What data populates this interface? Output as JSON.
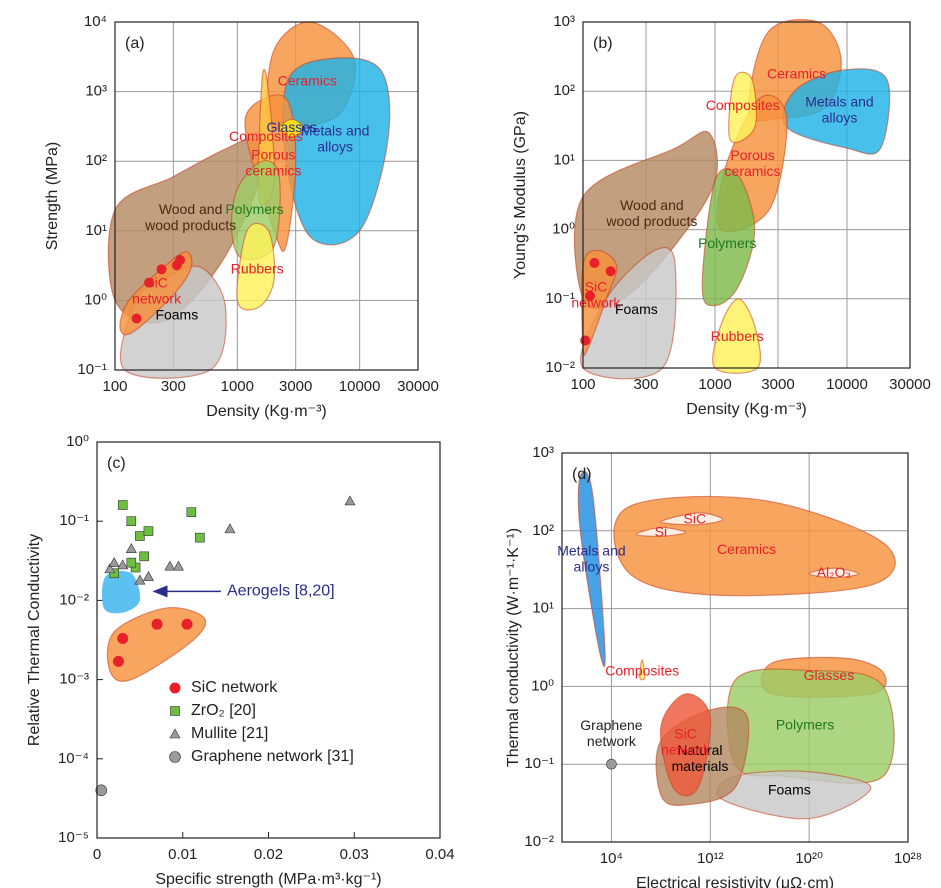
{
  "chart_data": [
    {
      "type": "region",
      "panel_label": "(a)",
      "xlabel": "Density (Kg·m⁻³)",
      "ylabel": "Strength (MPa)",
      "xlog": true,
      "ylog": true,
      "grid": true,
      "xlim": [
        100,
        30000
      ],
      "ylim": [
        0.1,
        10000
      ],
      "xticks": [
        100,
        300,
        1000,
        3000,
        10000,
        30000
      ],
      "yticks": [
        {
          "value": 0.1,
          "label": "10⁻¹"
        },
        {
          "value": 1,
          "label": "10⁰"
        },
        {
          "value": 10,
          "label": "10¹"
        },
        {
          "value": 100,
          "label": "10²"
        },
        {
          "value": 1000,
          "label": "10³"
        },
        {
          "value": 10000,
          "label": "10⁴"
        }
      ],
      "regions": [
        {
          "label": [
            "Wood and",
            "wood products"
          ],
          "color": "#b48a62",
          "text_color": "#4a2a10",
          "x": [
            100,
            100,
            300,
            800,
            1400,
            1500,
            700,
            250
          ],
          "y": [
            1,
            20,
            60,
            150,
            200,
            50,
            3,
            0.5
          ]
        },
        {
          "label": [
            "Foams"
          ],
          "color": "#c8c8c8",
          "text_color": "#000000",
          "x": [
            120,
            150,
            250,
            500,
            800,
            600
          ],
          "y": [
            0.1,
            1,
            2,
            3,
            0.8,
            0.1
          ]
        },
        {
          "label": [
            "Ceramics"
          ],
          "color": "#f7913d",
          "text_color": "#e8202a",
          "x": [
            1800,
            2000,
            4000,
            9000,
            7000,
            3000
          ],
          "y": [
            400,
            4000,
            10000,
            3000,
            500,
            300
          ]
        },
        {
          "label": [
            "Metals and",
            "alloys"
          ],
          "color": "#1fb2e8",
          "text_color": "#2b2d8e",
          "x": [
            2500,
            2600,
            6000,
            15000,
            17000,
            10000,
            4000
          ],
          "y": [
            100,
            1500,
            3000,
            2000,
            200,
            10,
            8
          ]
        },
        {
          "label": [
            "Porous",
            "ceramics"
          ],
          "color": "#f7913d",
          "text_color": "#e8202a",
          "x": [
            1200,
            1300,
            2500,
            3000,
            2500,
            2000
          ],
          "y": [
            200,
            600,
            800,
            100,
            6,
            10
          ]
        },
        {
          "label": [
            "Composites"
          ],
          "color": "#fbc640",
          "text_color": "#e8202a",
          "x": [
            1500,
            1600,
            1800,
            2000
          ],
          "y": [
            30,
            1600,
            1000,
            50
          ]
        },
        {
          "label": [
            "Polymers"
          ],
          "color": "#9ccc65",
          "text_color": "#1f7a1f",
          "x": [
            900,
            1000,
            1600,
            2200,
            2000,
            1100
          ],
          "y": [
            10,
            40,
            100,
            60,
            6,
            4
          ]
        },
        {
          "label": [
            "Rubbers"
          ],
          "color": "#fff159",
          "text_color": "#e8202a",
          "x": [
            1000,
            1200,
            1800,
            2000,
            1500
          ],
          "y": [
            1,
            10,
            10,
            2,
            0.8
          ]
        },
        {
          "label": [
            "Glasses"
          ],
          "color": "#fff200",
          "text_color": "#2b2d8e",
          "x": [
            2200,
            2800,
            3500,
            2800
          ],
          "y": [
            300,
            400,
            300,
            220
          ]
        },
        {
          "label": [
            "SiC",
            "network"
          ],
          "color": "#f7913d",
          "text_color": "#e8202a",
          "x": [
            110,
            130,
            250,
            380,
            420,
            300,
            140
          ],
          "y": [
            0.4,
            1,
            3,
            5,
            3,
            1.2,
            0.35
          ]
        }
      ],
      "points": {
        "color": "#e8202a",
        "x": [
          150,
          190,
          240,
          320,
          340
        ],
        "y": [
          0.55,
          1.8,
          2.8,
          3.2,
          3.8
        ]
      }
    },
    {
      "type": "region",
      "panel_label": "(b)",
      "xlabel": "Density (Kg·m⁻³)",
      "ylabel": "Young's Modulus (GPa)",
      "xlog": true,
      "ylog": true,
      "grid": true,
      "xlim": [
        100,
        30000
      ],
      "ylim": [
        0.01,
        1000
      ],
      "xticks": [
        100,
        300,
        1000,
        3000,
        10000,
        30000
      ],
      "yticks": [
        {
          "value": 0.01,
          "label": "10⁻²"
        },
        {
          "value": 0.1,
          "label": "10⁻¹"
        },
        {
          "value": 1,
          "label": "10⁰"
        },
        {
          "value": 10,
          "label": "10¹"
        },
        {
          "value": 100,
          "label": "10²"
        },
        {
          "value": 1000,
          "label": "10³"
        }
      ],
      "regions": [
        {
          "label": [
            "Wood and",
            "wood products"
          ],
          "color": "#b48a62",
          "text_color": "#4a2a10",
          "x": [
            100,
            100,
            500,
            900,
            1000,
            500,
            200
          ],
          "y": [
            0.1,
            3,
            15,
            25,
            5,
            0.6,
            0.1
          ]
        },
        {
          "label": [
            "Foams"
          ],
          "color": "#c8c8c8",
          "text_color": "#000000",
          "x": [
            100,
            150,
            350,
            500,
            400
          ],
          "y": [
            0.01,
            0.1,
            0.5,
            0.3,
            0.01
          ]
        },
        {
          "label": [
            "Ceramics"
          ],
          "color": "#f7913d",
          "text_color": "#e8202a",
          "x": [
            1800,
            2500,
            6000,
            9000,
            7000,
            3000
          ],
          "y": [
            50,
            700,
            1000,
            300,
            60,
            40
          ]
        },
        {
          "label": [
            "Metals and",
            "alloys"
          ],
          "color": "#1fb2e8",
          "text_color": "#2b2d8e",
          "x": [
            3500,
            4000,
            9000,
            20000,
            18000,
            10000
          ],
          "y": [
            30,
            100,
            200,
            150,
            15,
            15
          ]
        },
        {
          "label": [
            "Porous",
            "ceramics"
          ],
          "color": "#f7913d",
          "text_color": "#e8202a",
          "x": [
            1100,
            1200,
            2200,
            3500,
            2600
          ],
          "y": [
            1,
            8,
            80,
            40,
            2
          ]
        },
        {
          "label": [
            "Composites"
          ],
          "color": "#fff159",
          "text_color": "#e8202a",
          "x": [
            1300,
            1400,
            1900,
            2000
          ],
          "y": [
            20,
            150,
            150,
            30
          ]
        },
        {
          "label": [
            "Polymers"
          ],
          "color": "#7fba4c",
          "text_color": "#1f7a1f",
          "x": [
            800,
            1000,
            1500,
            2000,
            1500,
            1000
          ],
          "y": [
            0.15,
            5,
            6,
            1,
            0.15,
            0.08
          ]
        },
        {
          "label": [
            "Rubbers"
          ],
          "color": "#fff159",
          "text_color": "#e8202a",
          "x": [
            1000,
            1100,
            1500,
            2000,
            2100
          ],
          "y": [
            0.01,
            0.04,
            0.1,
            0.04,
            0.01
          ]
        },
        {
          "label": [
            "SiC",
            "network"
          ],
          "color": "#f7913d",
          "text_color": "#e8202a",
          "x": [
            100,
            100,
            130,
            180,
            150,
            110
          ],
          "y": [
            0.02,
            0.3,
            0.5,
            0.3,
            0.1,
            0.02
          ]
        }
      ],
      "points": {
        "color": "#e8202a",
        "x": [
          104,
          113,
          122,
          162
        ],
        "y": [
          0.025,
          0.11,
          0.33,
          0.25
        ]
      }
    },
    {
      "type": "scatter",
      "panel_label": "(c)",
      "xlabel": "Specific strength (MPa·m³·kg⁻¹)",
      "ylabel": "Relative Thermal Conductivity",
      "xlog": false,
      "ylog": true,
      "grid": false,
      "xlim": [
        0,
        0.04
      ],
      "ylim": [
        1e-05,
        1
      ],
      "xticks": [
        0,
        0.01,
        0.02,
        0.03,
        0.04
      ],
      "yticks": [
        {
          "value": 1e-05,
          "label": "10⁻⁵"
        },
        {
          "value": 0.0001,
          "label": "10⁻⁴"
        },
        {
          "value": 0.001,
          "label": "10⁻³"
        },
        {
          "value": 0.01,
          "label": "10⁻²"
        },
        {
          "value": 0.1,
          "label": "10⁻¹"
        },
        {
          "value": 1,
          "label": "10⁰"
        }
      ],
      "regions": [
        {
          "color": "#3fb6ee",
          "x": [
            0.0008,
            0.001,
            0.004,
            0.005,
            0.003
          ],
          "y": [
            0.008,
            0.02,
            0.022,
            0.01,
            0.007
          ]
        },
        {
          "color": "#f7913d",
          "x": [
            0.0015,
            0.002,
            0.008,
            0.0125,
            0.011,
            0.004
          ],
          "y": [
            0.0013,
            0.004,
            0.008,
            0.006,
            0.003,
            0.001
          ]
        }
      ],
      "annotation": {
        "text": "Aerogels [8,20]",
        "color": "#2b2d8e"
      },
      "legend": "lower center",
      "series": [
        {
          "name": "SiC network",
          "marker": "circle",
          "color": "#e8202a",
          "x": [
            0.0025,
            0.003,
            0.007,
            0.0105
          ],
          "values": [
            0.0017,
            0.0033,
            0.005,
            0.005
          ]
        },
        {
          "name": "ZrO₂ [20]",
          "marker": "square",
          "color": "#6cbf3f",
          "x": [
            0.002,
            0.003,
            0.004,
            0.005,
            0.006,
            0.0045,
            0.0055,
            0.011,
            0.012,
            0.004
          ],
          "values": [
            0.022,
            0.16,
            0.1,
            0.065,
            0.075,
            0.026,
            0.036,
            0.13,
            0.062,
            0.03
          ]
        },
        {
          "name": "Mullite [21]",
          "marker": "triangle",
          "color": "#9a9a9a",
          "x": [
            0.0015,
            0.002,
            0.003,
            0.004,
            0.005,
            0.006,
            0.0085,
            0.0095,
            0.0155,
            0.0295
          ],
          "values": [
            0.025,
            0.03,
            0.028,
            0.045,
            0.018,
            0.02,
            0.027,
            0.027,
            0.08,
            0.18
          ]
        },
        {
          "name": "Graphene network [31]",
          "marker": "circle",
          "color": "#9a9a9a",
          "x": [
            0.0005
          ],
          "values": [
            4e-05
          ]
        }
      ]
    },
    {
      "type": "region",
      "panel_label": "(d)",
      "xlabel": "Electrical resistivity (μΩ·cm)",
      "ylabel": "Thermal conductivity (W·m⁻¹·K⁻¹)",
      "xlog": true,
      "ylog": true,
      "grid": true,
      "xlim": [
        1,
        1e+28
      ],
      "ylim": [
        0.01,
        1000
      ],
      "xticks": [
        {
          "value": 10000,
          "label": "10⁴"
        },
        {
          "value": 1000000000000.0,
          "label": "10¹²"
        },
        {
          "value": 1e+20,
          "label": "10²⁰"
        },
        {
          "value": 1e+28,
          "label": "10²⁸"
        }
      ],
      "yticks": [
        {
          "value": 0.01,
          "label": "10⁻²"
        },
        {
          "value": 0.1,
          "label": "10⁻¹"
        },
        {
          "value": 1,
          "label": "10⁰"
        },
        {
          "value": 10,
          "label": "10¹"
        },
        {
          "value": 100,
          "label": "10²"
        },
        {
          "value": 1000,
          "label": "10³"
        }
      ],
      "regions": [
        {
          "label": [
            "Ceramics"
          ],
          "color": "#f7913d",
          "text_color": "#e8202a",
          "x": [
            200000,
            200000,
            1e+16,
            1e+26,
            1e+25,
            1000000000000.0
          ],
          "y": [
            30,
            200,
            250,
            70,
            20,
            15
          ]
        },
        {
          "label": [
            "Si"
          ],
          "color": "#ffffff",
          "text_color": "#e8202a",
          "x": [
            1000000,
            100000000.0,
            10000000000.0,
            100000000.0
          ],
          "y": [
            90,
            110,
            95,
            85
          ]
        },
        {
          "label": [
            "SiC"
          ],
          "color": "#ffffff",
          "text_color": "#e8202a",
          "x": [
            100000000.0,
            100000000000.0,
            10000000000000.0,
            100000000000.0
          ],
          "y": [
            130,
            170,
            140,
            120
          ]
        },
        {
          "label": [
            "Al₂O₃"
          ],
          "color": "#ffffff",
          "text_color": "#e8202a",
          "x": [
            1e+20,
            1e+22,
            1e+24,
            1e+22
          ],
          "y": [
            28,
            33,
            28,
            25
          ]
        },
        {
          "label": [
            "Metals and",
            "alloys"
          ],
          "color": "#1f8fe0",
          "text_color": "#2b2d8e",
          "x": [
            30,
            300,
            3000,
            1000,
            30
          ],
          "y": [
            500,
            300,
            3,
            3,
            100
          ]
        },
        {
          "label": [
            "Composites"
          ],
          "color": "#fff159",
          "text_color": "#e8202a",
          "x": [
            2000000,
            3000000,
            5000000
          ],
          "y": [
            1.3,
            2.2,
            1.3
          ]
        },
        {
          "label": [
            "Glasses"
          ],
          "color": "#f7913d",
          "text_color": "#e8202a",
          "x": [
            1e+17,
            1e+17,
            1e+23,
            1e+26,
            1e+25
          ],
          "y": [
            0.8,
            2,
            2.3,
            1.5,
            0.8
          ]
        },
        {
          "label": [
            "Polymers"
          ],
          "color": "#9ccc65",
          "text_color": "#1f7a1f",
          "x": [
            100000000000000.0,
            100000000000000.0,
            1e+20,
            1e+26,
            1e+26,
            1e+18
          ],
          "y": [
            0.1,
            1.2,
            1.6,
            1,
            0.07,
            0.07
          ]
        },
        {
          "label": [
            "Foams"
          ],
          "color": "#c8c8c8",
          "text_color": "#000000",
          "x": [
            10000000000000.0,
            100000000000000.0,
            1e+20,
            1e+25,
            1e+20
          ],
          "y": [
            0.035,
            0.07,
            0.08,
            0.05,
            0.02
          ]
        },
        {
          "label": [
            "Natural",
            "materials"
          ],
          "color": "#b48a62",
          "text_color": "#000000",
          "x": [
            100000000.0,
            100000000.0,
            1000000000000.0,
            1000000000000000.0,
            100000000000000.0,
            10000000000.0
          ],
          "y": [
            0.04,
            0.2,
            0.5,
            0.4,
            0.05,
            0.03
          ]
        },
        {
          "label": [
            "SiC",
            "network"
          ],
          "color": "#ee5a3a",
          "text_color": "#e8202a",
          "x": [
            100000000.0,
            10000000000.0,
            1000000000000.0,
            100000000000.0,
            1000000000.0
          ],
          "y": [
            0.3,
            0.8,
            0.4,
            0.05,
            0.05
          ]
        }
      ],
      "points": {
        "color": "#9a9a9a",
        "label": [
          "Graphene",
          "network"
        ],
        "x": [
          10000
        ],
        "y": [
          0.1
        ]
      }
    }
  ]
}
